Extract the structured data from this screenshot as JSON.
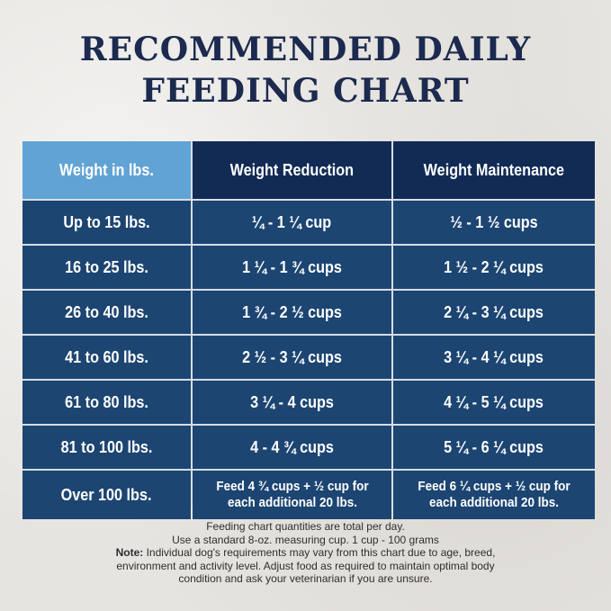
{
  "title": {
    "line1": "RECOMMENDED DAILY",
    "line2": "FEEDING CHART"
  },
  "table": {
    "headers": [
      "Weight in lbs.",
      "Weight Reduction",
      "Weight Maintenance"
    ],
    "rows": [
      [
        "Up to 15 lbs.",
        "¼ - 1 ¼ cup",
        "½ - 1 ½ cups"
      ],
      [
        "16 to 25 lbs.",
        "1 ¼ - 1 ¾ cups",
        "1 ½ - 2 ¼ cups"
      ],
      [
        "26 to 40 lbs.",
        "1 ¾ - 2 ½ cups",
        "2 ¼ - 3 ¼ cups"
      ],
      [
        "41 to 60 lbs.",
        "2 ½ - 3 ¼ cups",
        "3 ¼ - 4 ¼ cups"
      ],
      [
        "61 to 80 lbs.",
        "3 ¼ - 4 cups",
        "4 ¼ - 5 ¼ cups"
      ],
      [
        "81 to 100 lbs.",
        "4 - 4 ¾ cups",
        "5 ¼ - 6 ¼ cups"
      ]
    ],
    "last_row": {
      "weight": "Over 100 lbs.",
      "reduction_line1": "Feed 4 ¾ cups + ½ cup for",
      "reduction_line2": "each additional 20 lbs.",
      "maintenance_line1": "Feed 6 ¼ cups + ½ cup for",
      "maintenance_line2": "each additional 20 lbs."
    }
  },
  "notes": {
    "line1": "Feeding chart quantities are total per day.",
    "line2": "Use a standard 8-oz. measuring cup. 1 cup - 100 grams",
    "note_label": "Note:",
    "line3": " Individual dog's requirements may vary from this chart due to age, breed,",
    "line4": "environment and activity level. Adjust food as required to maintain optimal body",
    "line5": "condition and ask your veterinarian if you are unsure."
  },
  "colors": {
    "title": "#1b2a4e",
    "header_first": "#62a3d6",
    "header": "#112b55",
    "body": "#1c4572"
  }
}
